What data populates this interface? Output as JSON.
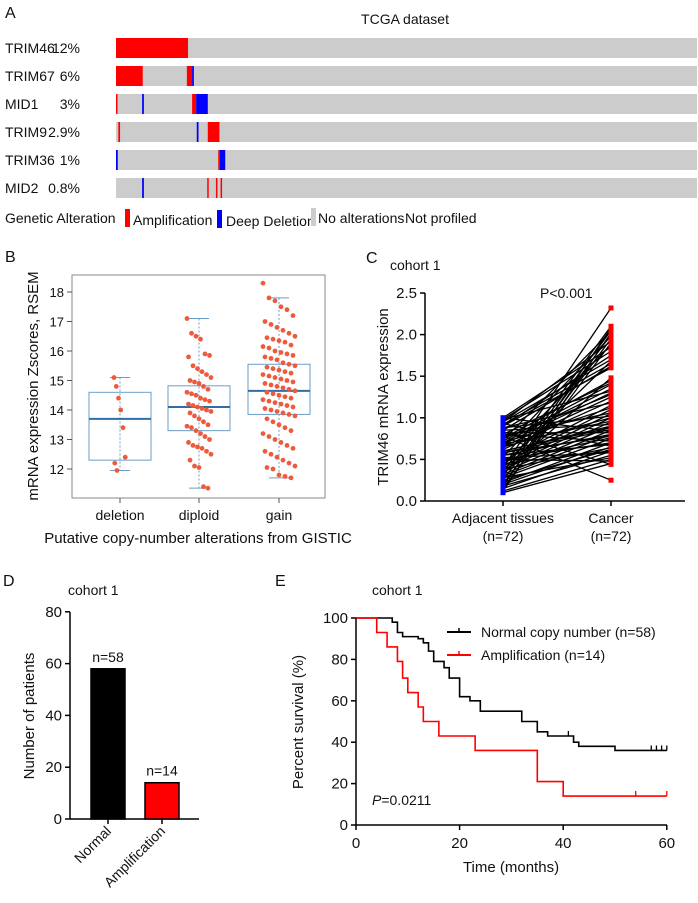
{
  "colors": {
    "amplification": "#ff0000",
    "deep_deletion": "#0000ff",
    "no_alteration": "#cccccc",
    "box": "#6a9ec8",
    "median": "#2e6fa8",
    "points": "#ee5a3c",
    "normal": "#000000",
    "amp": "#ff0000"
  },
  "chart_data": [
    {
      "panel": "A",
      "type": "table",
      "title": "TCGA dataset",
      "rows": [
        {
          "gene": "TRIM46",
          "pct": "12%",
          "segments": [
            {
              "type": "amplification",
              "from_pct_samples": 0,
              "to_pct_samples": 12.4
            }
          ]
        },
        {
          "gene": "TRIM67",
          "pct": "6%",
          "segments": [
            {
              "type": "amplification",
              "from_pct_samples": 0,
              "to_pct_samples": 4.6
            },
            {
              "type": "amplification",
              "from_pct_samples": 12.2,
              "to_pct_samples": 13.1
            },
            {
              "type": "deep_deletion",
              "from_pct_samples": 13.1,
              "to_pct_samples": 13.4
            }
          ]
        },
        {
          "gene": "MID1",
          "pct": "3%",
          "segments": [
            {
              "type": "amplification",
              "from_pct_samples": 0,
              "to_pct_samples": 0.25
            },
            {
              "type": "deep_deletion",
              "from_pct_samples": 4.5,
              "to_pct_samples": 4.8
            },
            {
              "type": "amplification",
              "from_pct_samples": 13.1,
              "to_pct_samples": 13.8
            },
            {
              "type": "deep_deletion",
              "from_pct_samples": 13.8,
              "to_pct_samples": 15.8
            }
          ]
        },
        {
          "gene": "TRIM9",
          "pct": "2.9%",
          "segments": [
            {
              "type": "amplification",
              "from_pct_samples": 0.4,
              "to_pct_samples": 0.7
            },
            {
              "type": "deep_deletion",
              "from_pct_samples": 13.9,
              "to_pct_samples": 14.2
            },
            {
              "type": "amplification",
              "from_pct_samples": 15.8,
              "to_pct_samples": 17.8
            }
          ]
        },
        {
          "gene": "TRIM36",
          "pct": "1%",
          "segments": [
            {
              "type": "deep_deletion",
              "from_pct_samples": 0,
              "to_pct_samples": 0.3
            },
            {
              "type": "amplification",
              "from_pct_samples": 17.6,
              "to_pct_samples": 17.9
            },
            {
              "type": "deep_deletion",
              "from_pct_samples": 17.9,
              "to_pct_samples": 18.8
            }
          ]
        },
        {
          "gene": "MID2",
          "pct": "0.8%",
          "segments": [
            {
              "type": "deep_deletion",
              "from_pct_samples": 4.5,
              "to_pct_samples": 4.8
            },
            {
              "type": "amplification",
              "from_pct_samples": 15.7,
              "to_pct_samples": 15.95
            },
            {
              "type": "amplification",
              "from_pct_samples": 17.2,
              "to_pct_samples": 17.45
            },
            {
              "type": "amplification",
              "from_pct_samples": 18.0,
              "to_pct_samples": 18.25
            }
          ]
        }
      ],
      "legend": {
        "title": "Genetic Alteration",
        "items": [
          "Amplification",
          "Deep Deletion",
          "No alterations",
          "Not profiled"
        ]
      }
    },
    {
      "panel": "B",
      "type": "scatter",
      "subtype": "box-with-jitter",
      "xlabel": "Putative copy-number alterations from GISTIC",
      "ylabel": "mRNA expression Zscores, RSEM",
      "ylim": [
        11.0,
        18.6
      ],
      "yticks": [
        "12",
        "13",
        "14",
        "15",
        "16",
        "17",
        "18"
      ],
      "categories": [
        "deletion",
        "diploid",
        "gain"
      ],
      "boxes": [
        {
          "q1": 12.3,
          "median": 13.7,
          "q3": 14.6,
          "whisker_low": 11.95,
          "whisker_high": 15.1
        },
        {
          "q1": 13.3,
          "median": 14.1,
          "q3": 14.82,
          "whisker_low": 11.35,
          "whisker_high": 17.1
        },
        {
          "q1": 13.85,
          "median": 14.65,
          "q3": 15.55,
          "whisker_low": 11.7,
          "whisker_high": 17.8
        }
      ],
      "points": [
        [
          15.1,
          14.8,
          14.4,
          14.0,
          13.4,
          12.4,
          12.2,
          11.95
        ],
        [
          17.1,
          16.6,
          16.5,
          16.4,
          15.9,
          15.85,
          15.8,
          15.5,
          15.4,
          15.3,
          15.2,
          15.1,
          15.0,
          14.95,
          14.9,
          14.8,
          14.7,
          14.6,
          14.55,
          14.5,
          14.4,
          14.35,
          14.3,
          14.2,
          14.15,
          14.1,
          14.05,
          14.0,
          13.95,
          13.9,
          13.8,
          13.7,
          13.6,
          13.5,
          13.45,
          13.4,
          13.3,
          13.2,
          13.1,
          13.0,
          12.9,
          12.8,
          12.75,
          12.7,
          12.6,
          12.5,
          12.3,
          12.1,
          12.05,
          11.4,
          11.35
        ],
        [
          18.3,
          17.8,
          17.7,
          17.5,
          17.4,
          17.2,
          17.0,
          16.9,
          16.8,
          16.7,
          16.6,
          16.5,
          16.45,
          16.4,
          16.35,
          16.3,
          16.2,
          16.15,
          16.1,
          16.0,
          15.95,
          15.9,
          15.85,
          15.8,
          15.75,
          15.7,
          15.6,
          15.55,
          15.5,
          15.45,
          15.4,
          15.35,
          15.3,
          15.25,
          15.2,
          15.15,
          15.1,
          15.05,
          15.0,
          14.95,
          14.9,
          14.85,
          14.8,
          14.75,
          14.7,
          14.65,
          14.6,
          14.55,
          14.5,
          14.45,
          14.4,
          14.35,
          14.3,
          14.25,
          14.2,
          14.15,
          14.1,
          14.05,
          14.0,
          13.95,
          13.9,
          13.85,
          13.8,
          13.7,
          13.6,
          13.5,
          13.4,
          13.3,
          13.2,
          13.1,
          13.0,
          12.9,
          12.8,
          12.7,
          12.6,
          12.5,
          12.4,
          12.3,
          12.2,
          12.1,
          12.05,
          12.0,
          11.8,
          11.75,
          11.7
        ]
      ]
    },
    {
      "panel": "C",
      "type": "line",
      "subtype": "paired",
      "title": "cohort 1",
      "annotation": "P<0.001",
      "ylabel": "TRIM46 mRNA expression",
      "ylim": [
        0,
        2.5
      ],
      "yticks": [
        "0.0",
        "0.5",
        "1.0",
        "1.5",
        "2.0",
        "2.5"
      ],
      "categories": [
        {
          "name": "Adjacent tissues",
          "n": "(n=72)"
        },
        {
          "name": "Cancer",
          "n": "(n=72)"
        }
      ],
      "adjacent": [
        0.1,
        0.12,
        0.15,
        0.18,
        0.2,
        0.22,
        0.25,
        0.28,
        0.3,
        0.32,
        0.35,
        0.38,
        0.4,
        0.42,
        0.45,
        0.48,
        0.5,
        0.52,
        0.55,
        0.58,
        0.6,
        0.62,
        0.65,
        0.68,
        0.7,
        0.72,
        0.75,
        0.78,
        0.8,
        0.82,
        0.85,
        0.88,
        0.9,
        0.92,
        0.95,
        0.98,
        1.0,
        0.15,
        0.2,
        0.25,
        0.3,
        0.35,
        0.4,
        0.45,
        0.5,
        0.55,
        0.6,
        0.65,
        0.7,
        0.75,
        0.8,
        0.85,
        0.9,
        0.95,
        0.12,
        0.18,
        0.28,
        0.38,
        0.48,
        0.58,
        0.68,
        0.78,
        0.88,
        0.98,
        0.33,
        0.43,
        0.53,
        0.63,
        0.73,
        0.83,
        0.93,
        1.0
      ],
      "cancer": [
        0.45,
        0.5,
        0.6,
        0.55,
        0.65,
        0.7,
        0.62,
        0.75,
        0.8,
        0.85,
        0.9,
        0.95,
        1.0,
        1.05,
        1.1,
        1.15,
        0.48,
        0.58,
        0.68,
        0.78,
        0.88,
        1.2,
        1.25,
        1.3,
        1.35,
        1.4,
        1.45,
        0.25,
        0.72,
        0.82,
        0.92,
        1.02,
        1.6,
        1.65,
        1.7,
        1.8,
        1.85,
        1.9,
        1.95,
        2.0,
        2.05,
        2.1,
        2.32,
        0.6,
        0.7,
        0.8,
        0.9,
        1.0,
        1.12,
        1.28,
        1.42,
        1.62,
        1.75,
        1.92,
        2.02,
        2.08,
        0.52,
        0.64,
        0.76,
        0.86,
        0.96,
        1.06,
        1.18,
        1.32,
        1.48,
        1.68,
        1.88,
        1.98,
        2.04,
        0.44,
        0.66,
        0.84
      ]
    },
    {
      "panel": "D",
      "type": "bar",
      "title": "cohort 1",
      "ylabel": "Number of patients",
      "ylim": [
        0,
        80
      ],
      "yticks": [
        "0",
        "20",
        "40",
        "60",
        "80"
      ],
      "categories": [
        "Normal",
        "Amplification"
      ],
      "values": [
        58,
        14
      ],
      "data_labels": [
        "n=58",
        "n=14"
      ]
    },
    {
      "panel": "E",
      "type": "line",
      "subtype": "kaplan-meier",
      "title": "cohort 1",
      "annotation_italic": "P",
      "annotation": "=0.0211",
      "xlabel": "Time (months)",
      "ylabel": "Percent survival (%)",
      "xlim": [
        0,
        60
      ],
      "ylim": [
        0,
        100
      ],
      "xticks": [
        "0",
        "20",
        "40",
        "60"
      ],
      "yticks": [
        "0",
        "20",
        "40",
        "60",
        "80",
        "100"
      ],
      "legend_position": "top-right",
      "series": [
        {
          "name": "Normal copy number (n=58)",
          "steps": [
            [
              0,
              100
            ],
            [
              7,
              98
            ],
            [
              8,
              93
            ],
            [
              9,
              91
            ],
            [
              12,
              90
            ],
            [
              13,
              88
            ],
            [
              14,
              84
            ],
            [
              15,
              79
            ],
            [
              17,
              76
            ],
            [
              18,
              71
            ],
            [
              20,
              62
            ],
            [
              22,
              60
            ],
            [
              24,
              55
            ],
            [
              32,
              50
            ],
            [
              35,
              45
            ],
            [
              37,
              43
            ],
            [
              42,
              40
            ],
            [
              43,
              38
            ],
            [
              50,
              36
            ],
            [
              60,
              36
            ]
          ],
          "censored": [
            41,
            57,
            58,
            59,
            60
          ]
        },
        {
          "name": "Amplification (n=14)",
          "steps": [
            [
              0,
              100
            ],
            [
              4,
              93
            ],
            [
              6,
              86
            ],
            [
              8,
              79
            ],
            [
              9,
              71
            ],
            [
              10,
              64
            ],
            [
              12,
              57
            ],
            [
              13,
              50
            ],
            [
              16,
              43
            ],
            [
              23,
              36
            ],
            [
              35,
              21
            ],
            [
              40,
              14
            ],
            [
              60,
              14
            ]
          ],
          "censored": [
            54,
            60
          ]
        }
      ]
    }
  ],
  "panel_labels": [
    "A",
    "B",
    "C",
    "D",
    "E"
  ]
}
